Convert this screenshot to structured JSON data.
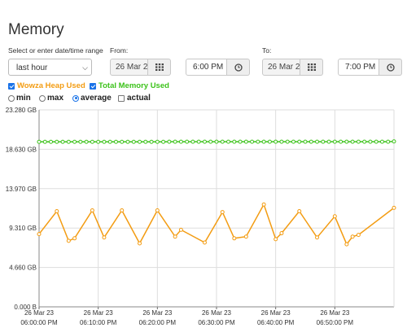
{
  "page": {
    "title": "Memory"
  },
  "range": {
    "label": "Select or enter date/time range",
    "selected": "last hour"
  },
  "from": {
    "label": "From:",
    "date": "26 Mar 2",
    "time": "6:00 PM"
  },
  "to": {
    "label": "To:",
    "date": "26 Mar 2",
    "time": "7:00 PM"
  },
  "legend": {
    "heap": {
      "label": "Wowza Heap Used",
      "color": "#f39c12",
      "checked": true
    },
    "total": {
      "label": "Total Memory Used",
      "color": "#3cc21a",
      "checked": true
    }
  },
  "modes": {
    "min": "min",
    "max": "max",
    "average": "average",
    "actual": "actual",
    "selected": "average"
  },
  "chart_data": {
    "type": "line",
    "y_ticks": [
      "23.280 GB",
      "18.630 GB",
      "13.970 GB",
      "9.310 GB",
      "4.660 GB",
      "0.000 B"
    ],
    "ylim": [
      0,
      23.28
    ],
    "x_ticks": [
      {
        "date": "26 Mar 23",
        "time": "06:00:00 PM"
      },
      {
        "date": "26 Mar 23",
        "time": "06:10:00 PM"
      },
      {
        "date": "26 Mar 23",
        "time": "06:20:00 PM"
      },
      {
        "date": "26 Mar 23",
        "time": "06:30:00 PM"
      },
      {
        "date": "26 Mar 23",
        "time": "06:40:00 PM"
      },
      {
        "date": "26 Mar 23",
        "time": "06:50:00 PM"
      }
    ],
    "xlim": [
      0,
      60
    ],
    "series": [
      {
        "name": "Total Memory Used",
        "color": "#3cc21a",
        "x": [
          0,
          1,
          2,
          3,
          4,
          5,
          6,
          7,
          8,
          9,
          10,
          11,
          12,
          13,
          14,
          15,
          16,
          17,
          18,
          19,
          20,
          21,
          22,
          23,
          24,
          25,
          26,
          27,
          28,
          29,
          30,
          31,
          32,
          33,
          34,
          35,
          36,
          37,
          38,
          39,
          40,
          41,
          42,
          43,
          44,
          45,
          46,
          47,
          48,
          49,
          50,
          51,
          52,
          53,
          54,
          55,
          56,
          57,
          58,
          59,
          60
        ],
        "y": [
          19.5,
          19.5,
          19.5,
          19.5,
          19.5,
          19.5,
          19.5,
          19.5,
          19.5,
          19.5,
          19.5,
          19.5,
          19.5,
          19.5,
          19.5,
          19.5,
          19.5,
          19.5,
          19.5,
          19.5,
          19.5,
          19.5,
          19.52,
          19.52,
          19.52,
          19.52,
          19.52,
          19.52,
          19.52,
          19.52,
          19.52,
          19.52,
          19.52,
          19.52,
          19.52,
          19.52,
          19.52,
          19.52,
          19.52,
          19.52,
          19.52,
          19.52,
          19.52,
          19.52,
          19.52,
          19.52,
          19.52,
          19.52,
          19.52,
          19.52,
          19.52,
          19.52,
          19.52,
          19.52,
          19.52,
          19.52,
          19.52,
          19.52,
          19.52,
          19.52,
          19.55
        ]
      },
      {
        "name": "Wowza Heap Used",
        "color": "#f39c12",
        "x": [
          0,
          3,
          5,
          6,
          9,
          11,
          14,
          17,
          20,
          23,
          24,
          28,
          31,
          33,
          35,
          38,
          40,
          41,
          44,
          47,
          50,
          52,
          53,
          54,
          60
        ],
        "y": [
          8.6,
          11.3,
          7.8,
          8.1,
          11.4,
          8.2,
          11.4,
          7.5,
          11.4,
          8.3,
          9.1,
          7.6,
          11.2,
          8.1,
          8.3,
          12.1,
          8.0,
          8.7,
          11.3,
          8.2,
          10.7,
          7.4,
          8.3,
          8.5,
          11.7
        ]
      }
    ]
  }
}
